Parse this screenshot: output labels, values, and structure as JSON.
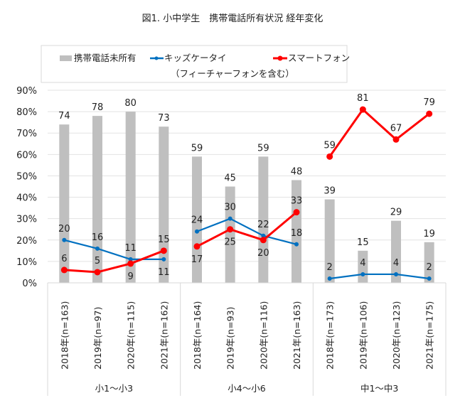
{
  "chart_data": {
    "type": "bar+line",
    "title": "図1. 小中学生　携帯電話所有状況 経年変化",
    "ylim": [
      0,
      90
    ],
    "yticks": [
      "0%",
      "10%",
      "20%",
      "30%",
      "40%",
      "50%",
      "60%",
      "70%",
      "80%",
      "90%"
    ],
    "grid": true,
    "legend_placement": "top",
    "groups": [
      "小1～小3",
      "小4～小6",
      "中1～中3"
    ],
    "categories": [
      "2018年(n=163)",
      "2019年(n=97)",
      "2020年(n=115)",
      "2021年(n=162)",
      "2018年(n=164)",
      "2019年(n=93)",
      "2020年(n=116)",
      "2021年(n=163)",
      "2018年(n=173)",
      "2019年(n=106)",
      "2020年(n=123)",
      "2021年(n=175)"
    ],
    "series": [
      {
        "name": "携帯電話未所有",
        "type": "bar",
        "color": "#bfbfbf",
        "values": [
          74,
          78,
          80,
          73,
          59,
          45,
          59,
          48,
          39,
          15,
          29,
          19
        ]
      },
      {
        "name": "キッズケータイ",
        "name_line2": "（フィーチャーフォンを含む）",
        "type": "line",
        "color": "#0070c0",
        "values": [
          20,
          16,
          11,
          11,
          24,
          30,
          22,
          18,
          2,
          4,
          4,
          2
        ]
      },
      {
        "name": "スマートフォン",
        "type": "line",
        "color": "#ff0000",
        "values": [
          6,
          5,
          9,
          15,
          17,
          25,
          20,
          33,
          59,
          81,
          67,
          79
        ]
      }
    ]
  }
}
